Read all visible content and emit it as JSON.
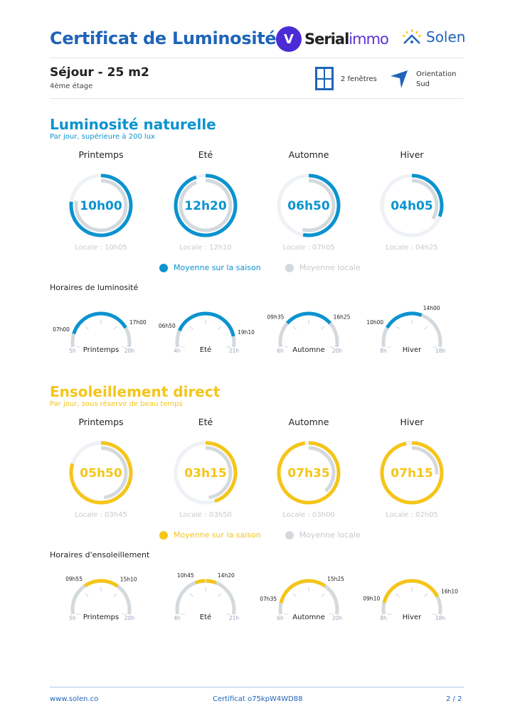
{
  "header": {
    "title": "Certificat de Luminosité",
    "partner_logo": "Serialimmo",
    "brand_logo": "Solen"
  },
  "room": {
    "name": "Séjour - 25 m2",
    "floor": "4ème étage",
    "windows": "2 fenêtres",
    "orientation_label": "Orientation",
    "orientation_value": "Sud"
  },
  "colors": {
    "title": "#1f64b8",
    "light": "#0a93cf",
    "sun": "#f5c518",
    "local": "#d3d9dd",
    "track": "#eef1f6"
  },
  "light": {
    "title": "Luminosité naturelle",
    "subtitle": "Par jour, supérieure à 200 lux",
    "legend_season": "Moyenne sur la saison",
    "legend_local": "Moyenne locale",
    "schedule_title": "Horaires de luminosité",
    "seasons": [
      {
        "name": "Printemps",
        "value": "10h00",
        "locale": "Locale : 10h05",
        "value_fraction": 0.77,
        "locale_fraction": 0.78,
        "start": "07h00",
        "end": "17h00",
        "range_start": "5h",
        "range_end": "20h"
      },
      {
        "name": "Eté",
        "value": "12h20",
        "locale": "Locale : 12h10",
        "value_fraction": 0.95,
        "locale_fraction": 0.94,
        "start": "06h50",
        "end": "19h10",
        "range_start": "4h",
        "range_end": "21h"
      },
      {
        "name": "Automne",
        "value": "06h50",
        "locale": "Locale : 07h05",
        "value_fraction": 0.53,
        "locale_fraction": 0.54,
        "start": "09h35",
        "end": "16h25",
        "range_start": "6h",
        "range_end": "20h"
      },
      {
        "name": "Hiver",
        "value": "04h05",
        "locale": "Locale : 04h25",
        "value_fraction": 0.31,
        "locale_fraction": 0.34,
        "start": "10h00",
        "end": "14h00",
        "range_start": "8h",
        "range_end": "18h"
      }
    ]
  },
  "sun": {
    "title": "Ensoleillement direct",
    "subtitle": "Par jour, sous réserve de beau temps",
    "legend_season": "Moyenne sur la saison",
    "legend_local": "Moyenne locale",
    "schedule_title": "Horaires d'ensoleillement",
    "seasons": [
      {
        "name": "Printemps",
        "value": "05h50",
        "locale": "Locale : 03h45",
        "value_fraction": 0.8,
        "locale_fraction": 0.48,
        "start": "09h55",
        "end": "15h10",
        "range_start": "5h",
        "range_end": "20h"
      },
      {
        "name": "Eté",
        "value": "03h15",
        "locale": "Locale : 03h50",
        "value_fraction": 0.45,
        "locale_fraction": 0.48,
        "start": "10h45",
        "end": "14h20",
        "range_start": "4h",
        "range_end": "21h"
      },
      {
        "name": "Automne",
        "value": "07h35",
        "locale": "Locale : 03h00",
        "value_fraction": 0.98,
        "locale_fraction": 0.38,
        "start": "07h35",
        "end": "15h25",
        "range_start": "6h",
        "range_end": "20h"
      },
      {
        "name": "Hiver",
        "value": "07h15",
        "locale": "Locale : 02h05",
        "value_fraction": 0.97,
        "locale_fraction": 0.26,
        "start": "09h10",
        "end": "16h10",
        "range_start": "8h",
        "range_end": "18h"
      }
    ]
  },
  "footer": {
    "website": "www.solen.co",
    "certificate": "Certificat o75kpW4WD88",
    "page": "2 / 2"
  }
}
